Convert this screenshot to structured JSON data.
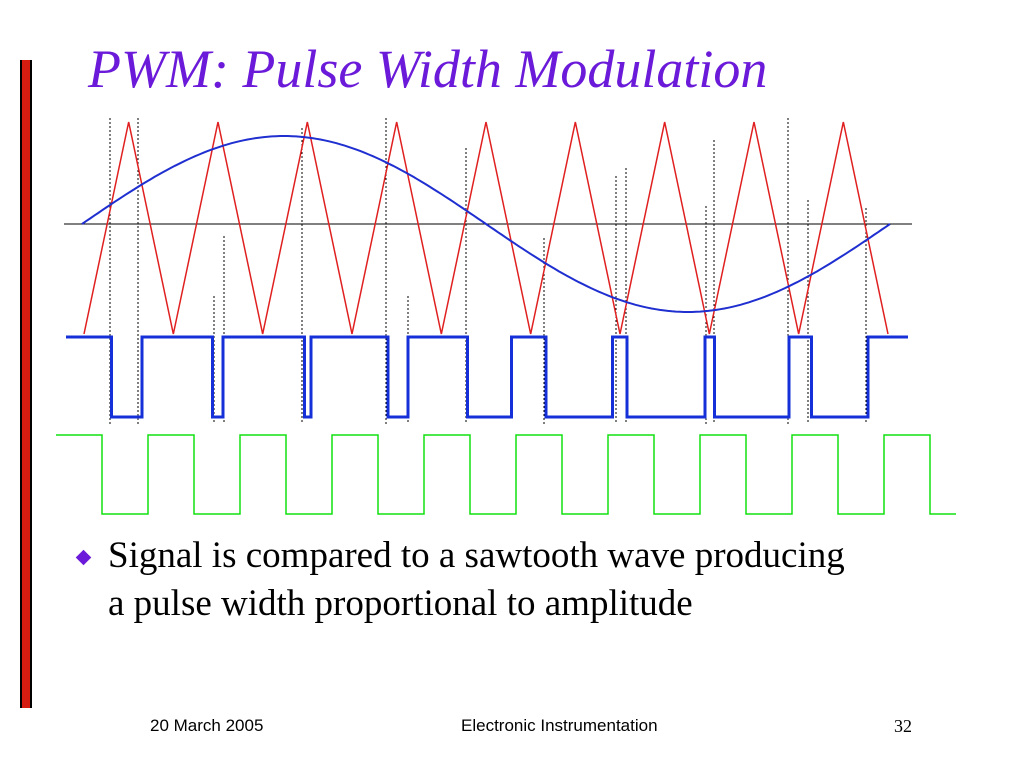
{
  "slide": {
    "title": "PWM: Pulse Width Modulation",
    "bullet": "Signal is compared to a sawtooth wave producing a pulse width proportional to amplitude",
    "footer_left": "20 March 2005",
    "footer_center": "Electronic Instrumentation",
    "footer_right": "32"
  },
  "diagram": {
    "colors": {
      "carrier": "#e02020",
      "signal": "#1f2fd0",
      "pwm": "#1530d8",
      "clock": "#10e010",
      "axis": "#000000",
      "title": "#6a1ad8",
      "accent_bar": "#d41c10"
    },
    "carrier_peaks": 9,
    "clock_cycles": 9
  }
}
